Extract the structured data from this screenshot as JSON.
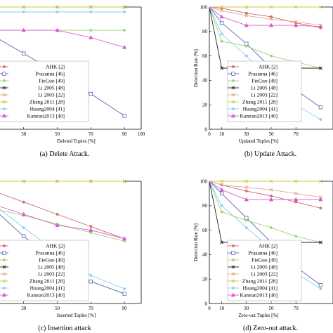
{
  "chart_data": [
    {
      "type": "line",
      "caption": "(a) Delete Attack.",
      "xlabel": "Deleted Tuples [%]",
      "ylabel": "",
      "xlim": [
        0,
        100
      ],
      "ylim": [
        0,
        100
      ],
      "xticks": [
        10,
        30,
        50,
        70,
        90,
        100
      ],
      "xtick_labels": [
        "10",
        "30",
        "50",
        "70",
        "90",
        "100"
      ],
      "yticks": [],
      "grid": false,
      "legend_position": "bottom-left",
      "series": [
        {
          "name": "AHK [2]",
          "color": "#d0666e",
          "marker": "circle",
          "x": [],
          "y": []
        },
        {
          "name": "Prasanna [46]",
          "color": "#5a63b5",
          "marker": "square",
          "x": [
            0,
            10,
            30,
            50,
            70,
            90
          ],
          "y": [
            82,
            78,
            62,
            46,
            29,
            11
          ]
        },
        {
          "name": "FieGuo [49]",
          "color": "#9ad474",
          "marker": "circle",
          "x": [
            0,
            10,
            30,
            50,
            70,
            90
          ],
          "y": [
            83,
            81,
            81,
            81,
            81,
            81
          ]
        },
        {
          "name": "Li 2005 [48]",
          "color": "#222222",
          "marker": "x",
          "x": [
            0,
            10,
            30,
            50,
            70,
            90
          ],
          "y": [
            100,
            100,
            100,
            100,
            100,
            100
          ]
        },
        {
          "name": "Li 2003 [22]",
          "color": "#e0a98c",
          "marker": "x",
          "x": [],
          "y": []
        },
        {
          "name": "Zhang 2011 [28]",
          "color": "#d2c83c",
          "marker": "x",
          "x": [
            0,
            10,
            30,
            50,
            70,
            90
          ],
          "y": [
            100,
            100,
            100,
            100,
            100,
            100
          ]
        },
        {
          "name": "Huang2004 [41]",
          "color": "#86d1f2",
          "marker": "circle",
          "x": [
            0,
            10,
            30,
            50,
            70,
            90
          ],
          "y": [
            96,
            96,
            96,
            96,
            96,
            96
          ]
        },
        {
          "name": "Kamran2013 [40]",
          "color": "#d85ad2",
          "marker": "triangle",
          "x": [
            0,
            10,
            30,
            50,
            70,
            90
          ],
          "y": [
            83,
            81,
            81,
            81,
            75,
            67
          ]
        }
      ]
    },
    {
      "type": "line",
      "caption": "(b) Update Attack.",
      "xlabel": "Updated Tuples [%]",
      "ylabel": "Detection Rate [%]",
      "xlim": [
        0,
        100
      ],
      "ylim": [
        0,
        100
      ],
      "xticks": [
        0,
        10,
        30,
        50,
        70
      ],
      "xtick_labels": [
        "0",
        "10",
        "30",
        "50",
        "70"
      ],
      "yticks": [
        0,
        20,
        40,
        60,
        80,
        100
      ],
      "ytick_labels": [
        "0",
        "20",
        "40",
        "60",
        "80",
        "100"
      ],
      "grid": false,
      "legend_position": "bottom-left",
      "series": [
        {
          "name": "AHK [2]",
          "color": "#d0666e",
          "marker": "circle",
          "x": [
            0,
            10,
            30,
            50,
            70,
            90
          ],
          "y": [
            100,
            99,
            95,
            92,
            87,
            83
          ]
        },
        {
          "name": "Prasanna [46]",
          "color": "#5a63b5",
          "marker": "square",
          "x": [
            0,
            10,
            30,
            50,
            70,
            90
          ],
          "y": [
            100,
            87,
            70,
            50,
            32,
            18
          ]
        },
        {
          "name": "FieGuo [49]",
          "color": "#9ad474",
          "marker": "circle",
          "x": [
            0,
            10,
            30,
            50,
            70,
            90
          ],
          "y": [
            100,
            72,
            68,
            60,
            55,
            50
          ]
        },
        {
          "name": "Li 2005 [48]",
          "color": "#222222",
          "marker": "x",
          "x": [
            0,
            10,
            30,
            50,
            70,
            90
          ],
          "y": [
            100,
            50,
            50,
            50,
            50,
            50
          ]
        },
        {
          "name": "Li 2003 [22]",
          "color": "#e0a98c",
          "marker": "x",
          "x": [
            0,
            10,
            30,
            50,
            70,
            90
          ],
          "y": [
            100,
            97,
            93,
            90,
            88,
            85
          ]
        },
        {
          "name": "Zhang 2011 [28]",
          "color": "#d2c83c",
          "marker": "x",
          "x": [
            0,
            10,
            30,
            50,
            70,
            90
          ],
          "y": [
            100,
            100,
            100,
            100,
            100,
            100
          ]
        },
        {
          "name": "Huang2004 [41]",
          "color": "#86d1f2",
          "marker": "circle",
          "x": [
            0,
            10,
            30,
            50,
            70,
            90
          ],
          "y": [
            100,
            78,
            60,
            40,
            20,
            8
          ]
        },
        {
          "name": "Kamran2013 [40]",
          "color": "#d85ad2",
          "marker": "triangle",
          "x": [
            0,
            10,
            30,
            50,
            70,
            90
          ],
          "y": [
            100,
            92,
            85,
            85,
            85,
            84
          ]
        }
      ]
    },
    {
      "type": "line",
      "caption": "(c) Insertion attack",
      "xlabel": "Inserted Tuples [%]",
      "ylabel": "",
      "xlim": [
        0,
        100
      ],
      "ylim": [
        0,
        100
      ],
      "xticks": [
        10,
        30,
        50,
        70,
        90
      ],
      "xtick_labels": [
        "10",
        "30",
        "50",
        "70",
        "90"
      ],
      "yticks": [],
      "grid": false,
      "legend_position": "bottom-left",
      "series": [
        {
          "name": "AHK [2]",
          "color": "#d0666e",
          "marker": "circle",
          "x": [
            0,
            10,
            30,
            50,
            70,
            90
          ],
          "y": [
            95,
            93,
            83,
            73,
            63,
            53
          ]
        },
        {
          "name": "Prasanna [46]",
          "color": "#5a63b5",
          "marker": "square",
          "x": [
            0,
            10,
            30,
            50,
            70,
            90
          ],
          "y": [
            88,
            80,
            55,
            33,
            18,
            8
          ]
        },
        {
          "name": "FieGuo [49]",
          "color": "#9ad474",
          "marker": "circle",
          "x": [
            0,
            10,
            30,
            50,
            70,
            90
          ],
          "y": [
            82,
            78,
            72,
            65,
            58,
            51
          ]
        },
        {
          "name": "Li 2005 [48]",
          "color": "#222222",
          "marker": "x",
          "x": [
            0,
            10,
            30,
            50,
            70,
            90
          ],
          "y": [
            100,
            100,
            100,
            100,
            100,
            100
          ]
        },
        {
          "name": "Li 2003 [22]",
          "color": "#e0a98c",
          "marker": "x",
          "x": [
            0,
            10,
            30,
            50,
            70,
            90
          ],
          "y": [
            100,
            100,
            100,
            100,
            100,
            100
          ]
        },
        {
          "name": "Zhang 2011 [28]",
          "color": "#d2c83c",
          "marker": "x",
          "x": [
            0,
            10,
            30,
            50,
            70,
            90
          ],
          "y": [
            100,
            100,
            100,
            100,
            100,
            100
          ]
        },
        {
          "name": "Huang2004 [41]",
          "color": "#86d1f2",
          "marker": "circle",
          "x": [
            0,
            10,
            30,
            50,
            70,
            90
          ],
          "y": [
            90,
            83,
            62,
            42,
            23,
            12
          ]
        },
        {
          "name": "Kamran2013 [40]",
          "color": "#d85ad2",
          "marker": "triangle",
          "x": [
            0,
            10,
            30,
            50,
            70,
            90
          ],
          "y": [
            85,
            82,
            73,
            64,
            60,
            53
          ]
        }
      ]
    },
    {
      "type": "line",
      "caption": "(d) Zero-out attack.",
      "xlabel": "Zero-out Tuples [%]",
      "ylabel": "Detection Rate [%]",
      "xlim": [
        0,
        100
      ],
      "ylim": [
        0,
        100
      ],
      "xticks": [
        0,
        10,
        30,
        50,
        70
      ],
      "xtick_labels": [
        "0",
        "10",
        "30",
        "50",
        "70"
      ],
      "yticks": [
        0,
        20,
        40,
        60,
        80,
        100
      ],
      "ytick_labels": [
        "0",
        "20",
        "40",
        "60",
        "80",
        "100"
      ],
      "grid": false,
      "legend_position": "bottom-left",
      "series": [
        {
          "name": "AHK [2]",
          "color": "#d0666e",
          "marker": "circle",
          "x": [
            0,
            10,
            30,
            50,
            70,
            90
          ],
          "y": [
            100,
            97,
            92,
            88,
            83,
            78
          ]
        },
        {
          "name": "Prasanna [46]",
          "color": "#5a63b5",
          "marker": "square",
          "x": [
            0,
            10,
            30,
            50,
            70,
            90
          ],
          "y": [
            100,
            90,
            70,
            50,
            30,
            15
          ]
        },
        {
          "name": "FieGuo [49]",
          "color": "#9ad474",
          "marker": "circle",
          "x": [
            0,
            10,
            30,
            50,
            70,
            90
          ],
          "y": [
            100,
            75,
            68,
            62,
            55,
            50
          ]
        },
        {
          "name": "Li 2005 [48]",
          "color": "#222222",
          "marker": "x",
          "x": [
            0,
            10,
            30,
            50,
            70,
            90
          ],
          "y": [
            100,
            50,
            50,
            50,
            50,
            50
          ]
        },
        {
          "name": "Li 2003 [22]",
          "color": "#e0a98c",
          "marker": "x",
          "x": [
            0,
            10,
            30,
            50,
            70,
            90
          ],
          "y": [
            100,
            97,
            95,
            93,
            90,
            87
          ]
        },
        {
          "name": "Zhang 2011 [28]",
          "color": "#d2c83c",
          "marker": "x",
          "x": [
            0,
            10,
            30,
            50,
            70,
            90
          ],
          "y": [
            100,
            100,
            100,
            100,
            100,
            100
          ]
        },
        {
          "name": "Huang2004 [41]",
          "color": "#86d1f2",
          "marker": "circle",
          "x": [
            0,
            10,
            30,
            50,
            70,
            90
          ],
          "y": [
            100,
            80,
            62,
            45,
            25,
            12
          ]
        },
        {
          "name": "Kamran2013 [40]",
          "color": "#d85ad2",
          "marker": "triangle",
          "x": [
            0,
            10,
            30,
            50,
            70,
            90
          ],
          "y": [
            100,
            93,
            85,
            85,
            85,
            85
          ]
        }
      ]
    }
  ]
}
